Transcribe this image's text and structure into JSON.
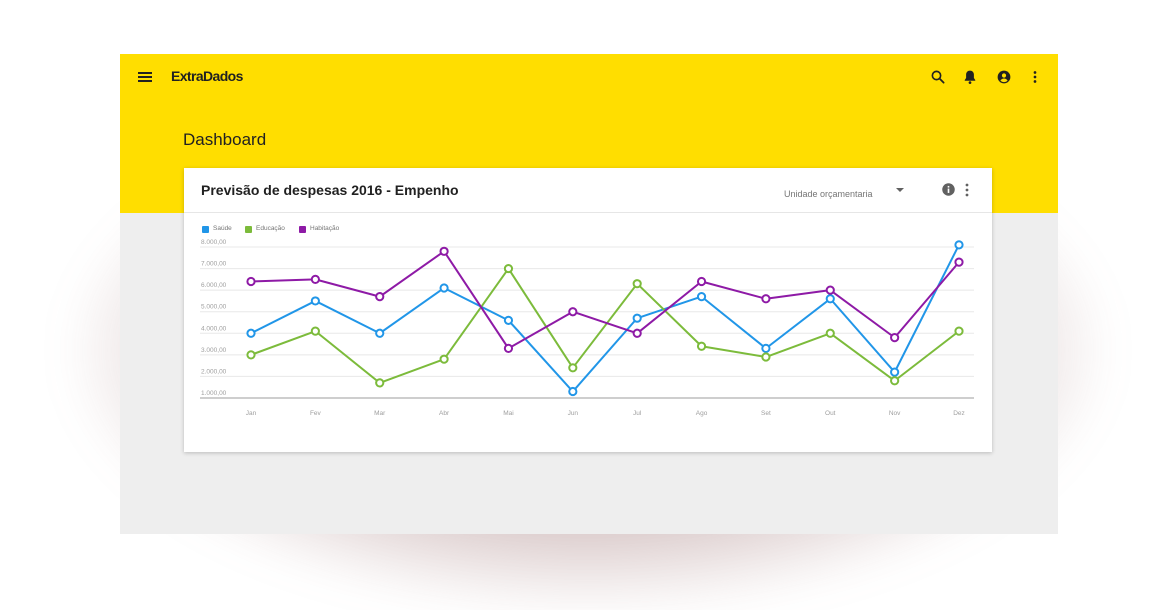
{
  "app": {
    "brand": "ExtraDados",
    "page_title": "Dashboard",
    "icons": [
      "menu-icon",
      "search-icon",
      "bell-icon",
      "account-icon",
      "more-vert-icon"
    ],
    "colors": {
      "appbar": "#ffde00",
      "background": "#eeeeee"
    }
  },
  "card": {
    "title": "Previsão de despesas 2016 - Empenho",
    "select_label": "Unidade orçamentaria",
    "icons": [
      "info-icon",
      "more-vert-icon"
    ]
  },
  "chart_data": {
    "type": "line",
    "categories": [
      "Jan",
      "Fev",
      "Mar",
      "Abr",
      "Mai",
      "Jun",
      "Jul",
      "Ago",
      "Set",
      "Out",
      "Nov",
      "Dez"
    ],
    "series": [
      {
        "name": "Saúde",
        "color": "#2196e8",
        "values": [
          4000,
          5500,
          4000,
          6100,
          4600,
          1300,
          4700,
          5700,
          3300,
          5600,
          2200,
          8100
        ]
      },
      {
        "name": "Educação",
        "color": "#7cbb3b",
        "values": [
          3000,
          4100,
          1700,
          2800,
          7000,
          2400,
          6300,
          3400,
          2900,
          4000,
          1800,
          4100
        ]
      },
      {
        "name": "Habitação",
        "color": "#8e1aa6",
        "values": [
          6400,
          6500,
          5700,
          7800,
          3300,
          5000,
          4000,
          6400,
          5600,
          6000,
          3800,
          7300
        ]
      }
    ],
    "y_ticks": [
      "1.000,00",
      "2.000,00",
      "3.000,00",
      "4.000,00",
      "5.000,00",
      "6.000,00",
      "7.000,00",
      "8.000,00"
    ],
    "ylim": [
      1000,
      8000
    ],
    "grid": true,
    "legend_position": "top-left"
  }
}
